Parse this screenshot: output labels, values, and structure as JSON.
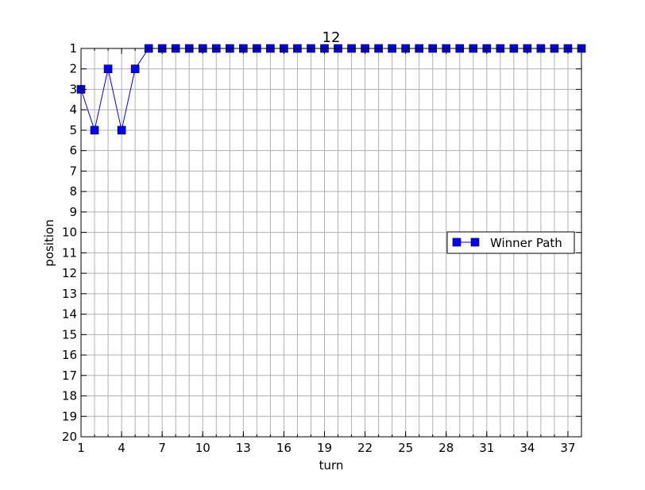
{
  "chart_data": {
    "type": "line",
    "title": "12",
    "xlabel": "turn",
    "ylabel": "position",
    "xlim": [
      1,
      38
    ],
    "ylim": [
      20,
      1
    ],
    "y_inverted": true,
    "grid": true,
    "x_ticks": [
      1,
      4,
      7,
      10,
      13,
      16,
      19,
      22,
      25,
      28,
      31,
      34,
      37
    ],
    "y_ticks": [
      1,
      2,
      3,
      4,
      5,
      6,
      7,
      8,
      9,
      10,
      11,
      12,
      13,
      14,
      15,
      16,
      17,
      18,
      19,
      20
    ],
    "legend": {
      "position": "center-right",
      "entries": [
        "Winner Path"
      ]
    },
    "series": [
      {
        "name": "Winner Path",
        "color": "#0000ff",
        "marker": "square",
        "x": [
          1,
          2,
          3,
          4,
          5,
          6,
          7,
          8,
          9,
          10,
          11,
          12,
          13,
          14,
          15,
          16,
          17,
          18,
          19,
          20,
          21,
          22,
          23,
          24,
          25,
          26,
          27,
          28,
          29,
          30,
          31,
          32,
          33,
          34,
          35,
          36,
          37,
          38
        ],
        "y": [
          3,
          5,
          2,
          5,
          2,
          1,
          1,
          1,
          1,
          1,
          1,
          1,
          1,
          1,
          1,
          1,
          1,
          1,
          1,
          1,
          1,
          1,
          1,
          1,
          1,
          1,
          1,
          1,
          1,
          1,
          1,
          1,
          1,
          1,
          1,
          1,
          1,
          1
        ]
      }
    ]
  }
}
